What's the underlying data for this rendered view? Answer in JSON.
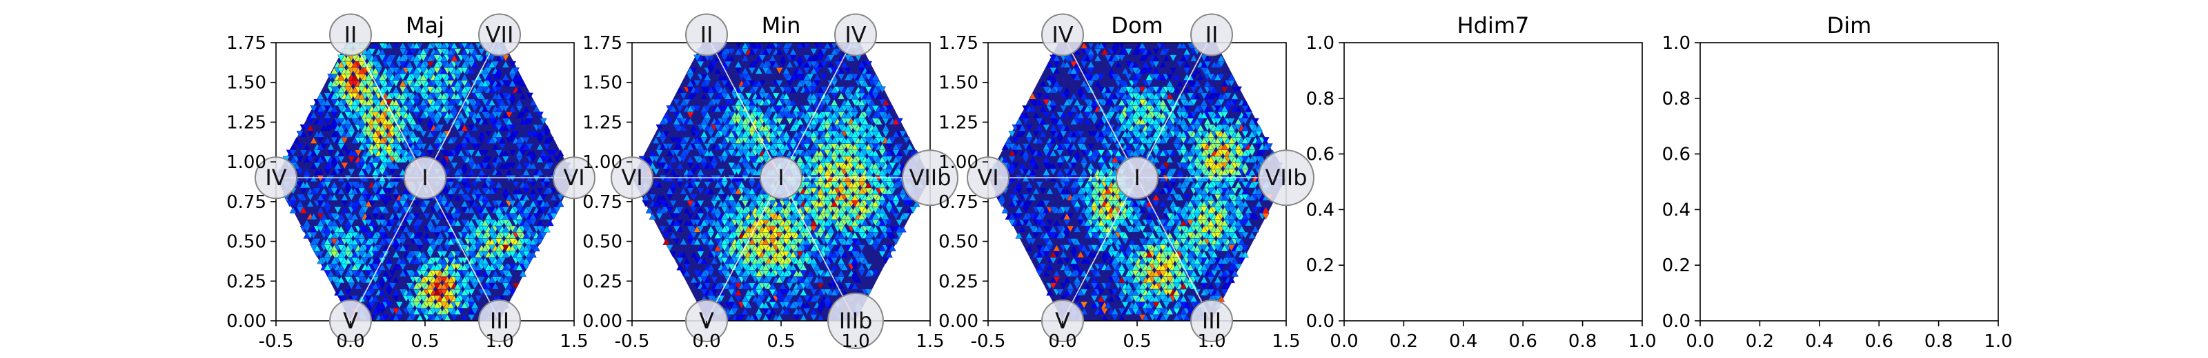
{
  "chart_data": [
    {
      "type": "heatmap",
      "title": "Maj",
      "xlim": [
        -0.5,
        1.5
      ],
      "ylim": [
        0,
        1.75
      ],
      "xticks": [
        "-0.5",
        "0.0",
        "0.5",
        "1.0",
        "1.5"
      ],
      "yticks": [
        "0.00",
        "0.25",
        "0.50",
        "0.75",
        "1.00",
        "1.25",
        "1.50",
        "1.75"
      ],
      "nodes": [
        {
          "label": "I",
          "x": 0.5,
          "y": 0.9
        },
        {
          "label": "II",
          "x": 0.0,
          "y": 1.8
        },
        {
          "label": "VII",
          "x": 1.0,
          "y": 1.8
        },
        {
          "label": "IV",
          "x": -0.5,
          "y": 0.9
        },
        {
          "label": "VI",
          "x": 1.5,
          "y": 0.9
        },
        {
          "label": "V",
          "x": 0.0,
          "y": 0.0
        },
        {
          "label": "III",
          "x": 1.0,
          "y": 0.0
        }
      ],
      "hotspots": [
        {
          "x": 0.02,
          "y": 1.55,
          "sx": 0.1,
          "sy": 0.14,
          "amp": 0.75
        },
        {
          "x": 0.22,
          "y": 1.2,
          "sx": 0.1,
          "sy": 0.16,
          "amp": 0.6
        },
        {
          "x": 0.6,
          "y": 0.2,
          "sx": 0.12,
          "sy": 0.12,
          "amp": 0.75
        },
        {
          "x": 1.0,
          "y": 0.5,
          "sx": 0.18,
          "sy": 0.12,
          "amp": 0.45
        },
        {
          "x": 0.6,
          "y": 1.5,
          "sx": 0.22,
          "sy": 0.2,
          "amp": 0.3
        },
        {
          "x": -0.05,
          "y": 0.45,
          "sx": 0.15,
          "sy": 0.15,
          "amp": 0.3
        }
      ]
    },
    {
      "type": "heatmap",
      "title": "Min",
      "xlim": [
        -0.5,
        1.5
      ],
      "ylim": [
        0,
        1.75
      ],
      "xticks": [
        "-0.5",
        "0.0",
        "0.5",
        "1.0",
        "1.5"
      ],
      "yticks": [
        "0.00",
        "0.25",
        "0.50",
        "0.75",
        "1.00",
        "1.25",
        "1.50",
        "1.75"
      ],
      "nodes": [
        {
          "label": "I",
          "x": 0.5,
          "y": 0.9
        },
        {
          "label": "II",
          "x": 0.0,
          "y": 1.8
        },
        {
          "label": "IV",
          "x": 1.0,
          "y": 1.8
        },
        {
          "label": "VI",
          "x": -0.5,
          "y": 0.9
        },
        {
          "label": "VIIb",
          "x": 1.5,
          "y": 0.9
        },
        {
          "label": "V",
          "x": 0.0,
          "y": 0.0
        },
        {
          "label": "IIIb",
          "x": 1.0,
          "y": 0.0
        }
      ],
      "hotspots": [
        {
          "x": 0.4,
          "y": 0.5,
          "sx": 0.2,
          "sy": 0.2,
          "amp": 0.6
        },
        {
          "x": 0.95,
          "y": 0.8,
          "sx": 0.2,
          "sy": 0.18,
          "amp": 0.55
        },
        {
          "x": 0.3,
          "y": 1.2,
          "sx": 0.15,
          "sy": 0.15,
          "amp": 0.4
        },
        {
          "x": 0.9,
          "y": 1.2,
          "sx": 0.2,
          "sy": 0.2,
          "amp": 0.3
        }
      ]
    },
    {
      "type": "heatmap",
      "title": "Dom",
      "xlim": [
        -0.5,
        1.5
      ],
      "ylim": [
        0,
        1.75
      ],
      "xticks": [
        "-0.5",
        "0.0",
        "0.5",
        "1.0",
        "1.5"
      ],
      "yticks": [
        "0.00",
        "0.25",
        "0.50",
        "0.75",
        "1.00",
        "1.25",
        "1.50",
        "1.75"
      ],
      "nodes": [
        {
          "label": "I",
          "x": 0.5,
          "y": 0.9
        },
        {
          "label": "IV",
          "x": 0.0,
          "y": 1.8
        },
        {
          "label": "II",
          "x": 1.0,
          "y": 1.8
        },
        {
          "label": "VI",
          "x": -0.5,
          "y": 0.9
        },
        {
          "label": "VIIb",
          "x": 1.5,
          "y": 0.9
        },
        {
          "label": "V",
          "x": 0.0,
          "y": 0.0
        },
        {
          "label": "III",
          "x": 1.0,
          "y": 0.0
        }
      ],
      "hotspots": [
        {
          "x": 0.3,
          "y": 0.75,
          "sx": 0.1,
          "sy": 0.15,
          "amp": 0.65
        },
        {
          "x": 1.05,
          "y": 1.05,
          "sx": 0.15,
          "sy": 0.15,
          "amp": 0.6
        },
        {
          "x": 0.65,
          "y": 0.3,
          "sx": 0.15,
          "sy": 0.15,
          "amp": 0.6
        },
        {
          "x": 1.0,
          "y": 0.6,
          "sx": 0.15,
          "sy": 0.12,
          "amp": 0.5
        },
        {
          "x": 0.55,
          "y": 1.3,
          "sx": 0.15,
          "sy": 0.15,
          "amp": 0.4
        }
      ]
    },
    {
      "type": "heatmap",
      "title": "Hdim7",
      "xlim": [
        0,
        1
      ],
      "ylim": [
        0,
        1
      ],
      "xticks": [
        "0.0",
        "0.2",
        "0.4",
        "0.6",
        "0.8",
        "1.0"
      ],
      "yticks": [
        "0.0",
        "0.2",
        "0.4",
        "0.6",
        "0.8",
        "1.0"
      ],
      "empty": true
    },
    {
      "type": "heatmap",
      "title": "Dim",
      "xlim": [
        0,
        1
      ],
      "ylim": [
        0,
        1
      ],
      "xticks": [
        "0.0",
        "0.2",
        "0.4",
        "0.6",
        "0.8",
        "1.0"
      ],
      "yticks": [
        "0.0",
        "0.2",
        "0.4",
        "0.6",
        "0.8",
        "1.0"
      ],
      "empty": true
    }
  ]
}
